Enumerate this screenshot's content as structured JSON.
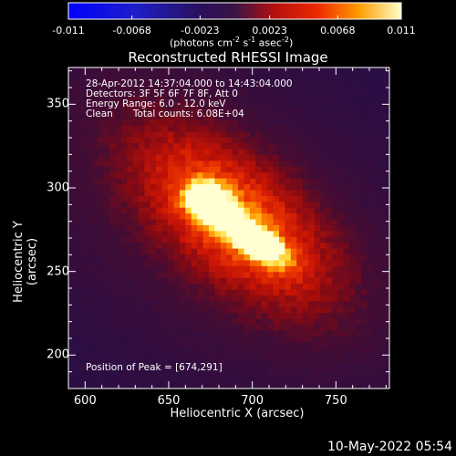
{
  "chart_data": {
    "type": "heatmap",
    "title": "Reconstructed RHESSI Image",
    "xlabel": "Heliocentric X (arcsec)",
    "ylabel": "Heliocentric Y (arcsec)",
    "xlim": [
      590,
      782
    ],
    "ylim": [
      180,
      372
    ],
    "x_ticks": [
      600,
      650,
      700,
      750
    ],
    "y_ticks": [
      200,
      250,
      300,
      350
    ],
    "colorbar": {
      "ticks": [
        "-0.011",
        "-0.0068",
        "-0.0023",
        "0.0023",
        "0.0068",
        "0.011"
      ],
      "tick_values": [
        -0.011,
        -0.0068,
        -0.0023,
        0.0023,
        0.0068,
        0.011
      ],
      "range": [
        -0.011,
        0.011
      ],
      "unit_main": "(photons cm",
      "unit_sup1": "-2",
      "unit_mid1": " s",
      "unit_sup2": "-1",
      "unit_mid2": " asec",
      "unit_sup3": "-2",
      "unit_end": ")"
    },
    "annotations": {
      "time": "28-Apr-2012 14:37:04.000 to 14:43:04.000",
      "detectors": "Detectors: 3F 5F 6F 7F 8F, Att 0",
      "energy": "Energy Range: 6.0 - 12.0 keV",
      "clean": "Clean",
      "counts": "Total counts: 6.08E+04",
      "peak": "Position of Peak = [674,291]"
    },
    "peak": {
      "x": 674,
      "y": 291,
      "value": 0.011
    },
    "source_secondary": {
      "x": 700,
      "y": 270,
      "value": 0.0085
    }
  },
  "footer": {
    "timestamp": "10-May-2022 05:54"
  }
}
